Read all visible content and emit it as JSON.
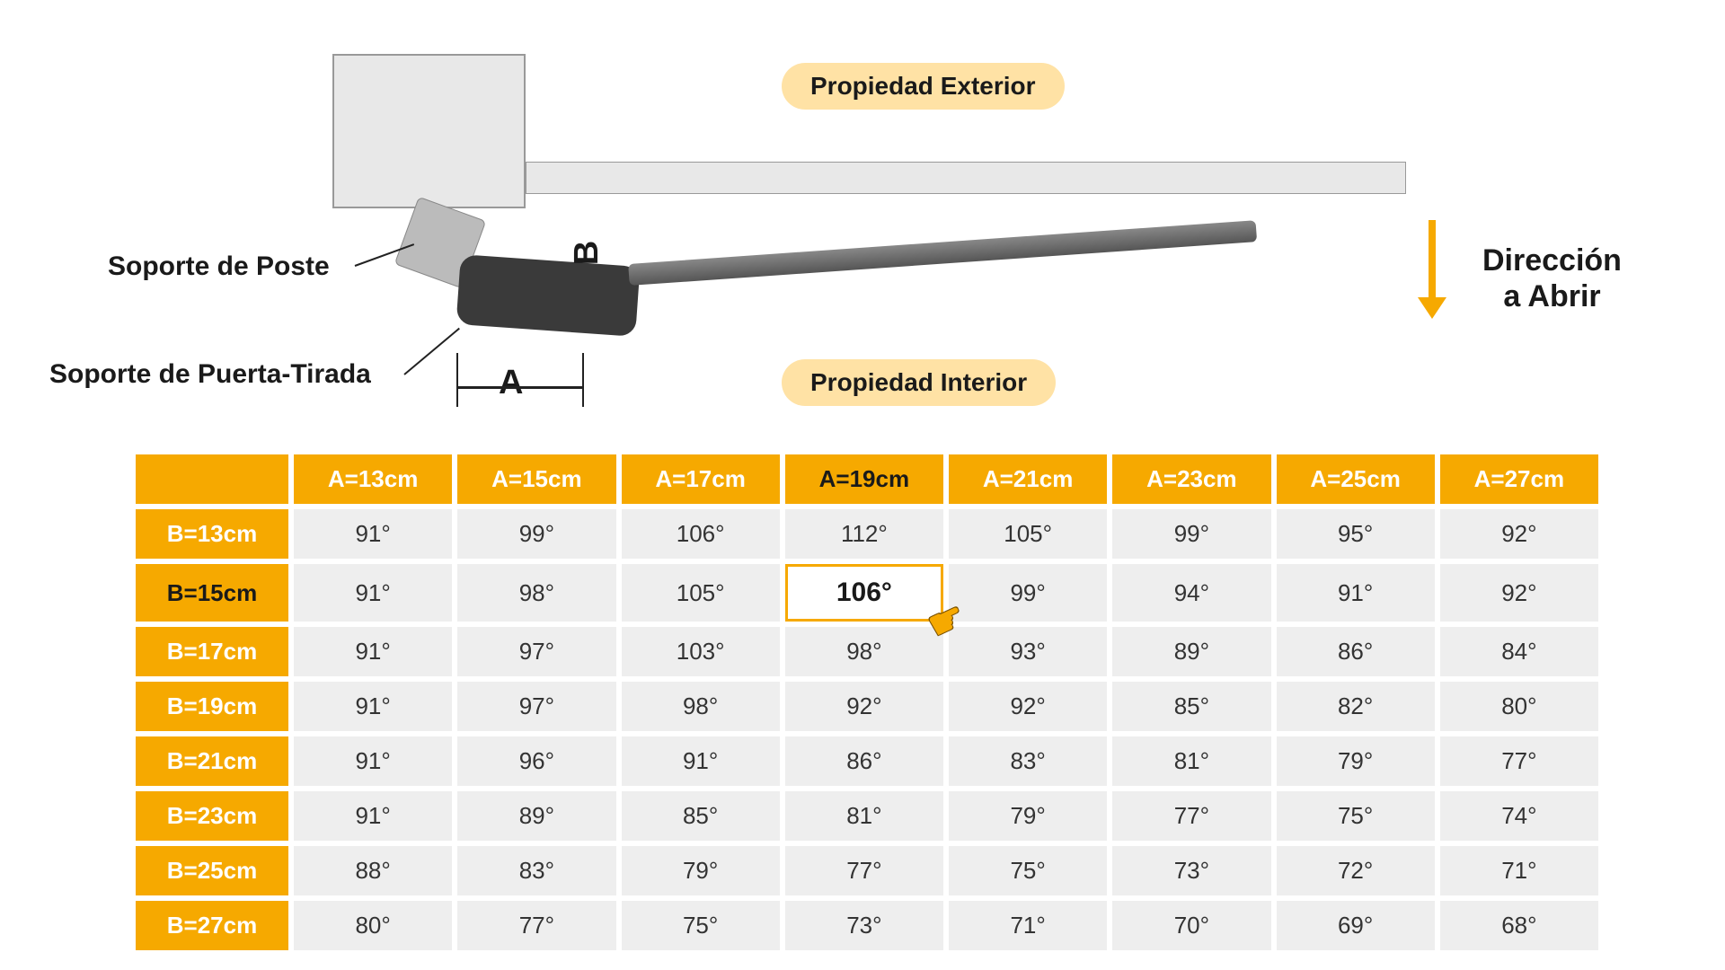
{
  "labels": {
    "exterior": "Propiedad Exterior",
    "interior": "Propiedad Interior",
    "poste": "Soporte de Poste",
    "puerta": "Soporte de Puerta-Tirada",
    "direction": "Dirección a Abrir",
    "dim_a": "A",
    "dim_b": "B"
  },
  "colors": {
    "accent": "#f6a900",
    "pill_bg": "#ffe2a5",
    "cell_bg": "#eeeeee",
    "text": "#1a1a1a",
    "head_text": "#ffffff"
  },
  "table": {
    "col_headers": [
      "A=13cm",
      "A=15cm",
      "A=17cm",
      "A=19cm",
      "A=21cm",
      "A=23cm",
      "A=25cm",
      "A=27cm"
    ],
    "row_headers": [
      "B=13cm",
      "B=15cm",
      "B=17cm",
      "B=19cm",
      "B=21cm",
      "B=23cm",
      "B=25cm",
      "B=27cm"
    ],
    "cells": [
      [
        "91°",
        "99°",
        "106°",
        "112°",
        "105°",
        "99°",
        "95°",
        "92°"
      ],
      [
        "91°",
        "98°",
        "105°",
        "106°",
        "99°",
        "94°",
        "91°",
        "92°"
      ],
      [
        "91°",
        "97°",
        "103°",
        "98°",
        "93°",
        "89°",
        "86°",
        "84°"
      ],
      [
        "91°",
        "97°",
        "98°",
        "92°",
        "92°",
        "85°",
        "82°",
        "80°"
      ],
      [
        "91°",
        "96°",
        "91°",
        "86°",
        "83°",
        "81°",
        "79°",
        "77°"
      ],
      [
        "91°",
        "89°",
        "85°",
        "81°",
        "79°",
        "77°",
        "75°",
        "74°"
      ],
      [
        "88°",
        "83°",
        "79°",
        "77°",
        "75°",
        "73°",
        "72°",
        "71°"
      ],
      [
        "80°",
        "77°",
        "75°",
        "73°",
        "71°",
        "70°",
        "69°",
        "68°"
      ]
    ],
    "highlight_col_index": 3,
    "highlight_row_index": 1,
    "highlight_cell": {
      "row": 1,
      "col": 3
    },
    "fontsize_header": 26,
    "fontsize_cell": 26,
    "fontsize_highlight_cell": 30
  }
}
